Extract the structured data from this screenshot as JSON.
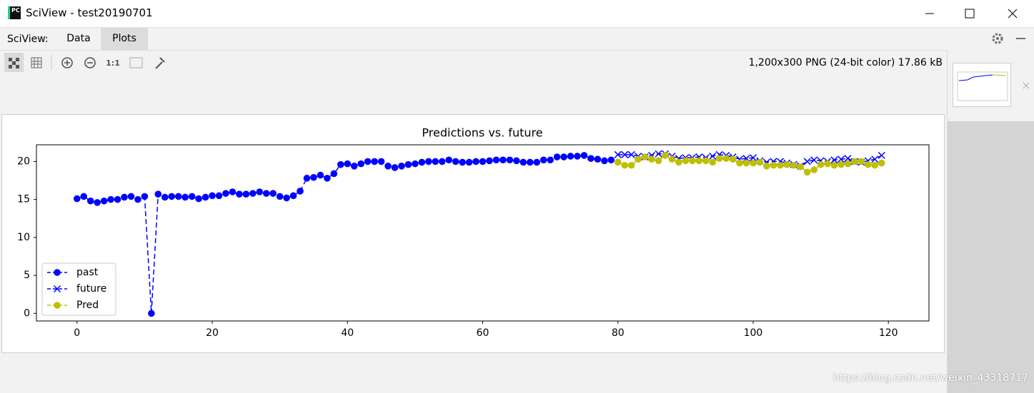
{
  "window": {
    "title": "SciView - test20190701",
    "icon_text": "PC"
  },
  "menu": {
    "label": "SciView:",
    "tabs": [
      "Data",
      "Plots"
    ]
  },
  "toolbar": {
    "zoom_label": "1:1",
    "image_info": "1,200x300 PNG (24-bit color) 17.86 kB"
  },
  "watermark": "https://blog.csdn.net/weixin_43318717",
  "chart_data": {
    "type": "line",
    "title": "Predictions vs. future",
    "xlim": [
      -6,
      126
    ],
    "xticks": [
      0,
      20,
      40,
      60,
      80,
      100,
      120
    ],
    "ylim": [
      -1.0,
      22.2
    ],
    "yticks": [
      0,
      5,
      10,
      15,
      20
    ],
    "grid": false,
    "legend": "lower left",
    "linestyle": "dashed",
    "series": [
      {
        "name": "past",
        "color": "#0000ff",
        "marker": "circle",
        "x": [
          0,
          1,
          2,
          3,
          4,
          5,
          6,
          7,
          8,
          9,
          10,
          11,
          12,
          13,
          14,
          15,
          16,
          17,
          18,
          19,
          20,
          21,
          22,
          23,
          24,
          25,
          26,
          27,
          28,
          29,
          30,
          31,
          32,
          33,
          34,
          35,
          36,
          37,
          38,
          39,
          40,
          41,
          42,
          43,
          44,
          45,
          46,
          47,
          48,
          49,
          50,
          51,
          52,
          53,
          54,
          55,
          56,
          57,
          58,
          59,
          60,
          61,
          62,
          63,
          64,
          65,
          66,
          67,
          68,
          69,
          70,
          71,
          72,
          73,
          74,
          75,
          76,
          77,
          78,
          79
        ],
        "values": [
          15.1,
          15.4,
          14.8,
          14.6,
          14.8,
          15.0,
          15.0,
          15.3,
          15.4,
          15.0,
          15.4,
          0.0,
          15.7,
          15.3,
          15.4,
          15.4,
          15.3,
          15.4,
          15.1,
          15.3,
          15.5,
          15.5,
          15.8,
          16.0,
          15.7,
          15.7,
          15.8,
          16.0,
          15.8,
          15.8,
          15.4,
          15.2,
          15.5,
          16.1,
          17.8,
          17.9,
          18.2,
          17.8,
          18.4,
          19.6,
          19.7,
          19.4,
          19.7,
          20.0,
          20.0,
          20.0,
          19.4,
          19.2,
          19.4,
          19.6,
          19.7,
          19.9,
          20.0,
          20.0,
          20.0,
          20.2,
          20.0,
          19.9,
          19.9,
          20.0,
          20.0,
          20.1,
          20.2,
          20.2,
          20.2,
          20.1,
          19.9,
          19.9,
          19.9,
          20.2,
          20.2,
          20.6,
          20.6,
          20.7,
          20.7,
          20.8,
          20.4,
          20.3,
          20.1,
          20.2
        ]
      },
      {
        "name": "future",
        "color": "#0000ff",
        "marker": "x",
        "x": [
          80,
          81,
          82,
          83,
          84,
          85,
          86,
          87,
          88,
          89,
          90,
          91,
          92,
          93,
          94,
          95,
          96,
          97,
          98,
          99,
          100,
          101,
          102,
          103,
          104,
          105,
          106,
          107,
          108,
          109,
          110,
          111,
          112,
          113,
          114,
          115,
          116,
          117,
          118,
          119
        ],
        "values": [
          20.9,
          20.9,
          20.9,
          20.7,
          20.6,
          20.8,
          21.0,
          21.0,
          20.7,
          20.4,
          20.5,
          20.5,
          20.6,
          20.5,
          20.7,
          20.9,
          20.8,
          20.6,
          20.3,
          20.4,
          20.5,
          20.1,
          19.9,
          20.0,
          20.0,
          19.8,
          19.6,
          19.4,
          20.0,
          20.2,
          20.1,
          20.0,
          20.2,
          20.3,
          20.4,
          20.0,
          19.9,
          20.1,
          20.3,
          20.8
        ]
      },
      {
        "name": "Pred",
        "color": "#bfbf00",
        "marker": "circle",
        "x": [
          80,
          81,
          82,
          83,
          84,
          85,
          86,
          87,
          88,
          89,
          90,
          91,
          92,
          93,
          94,
          95,
          96,
          97,
          98,
          99,
          100,
          101,
          102,
          103,
          104,
          105,
          106,
          107,
          108,
          109,
          110,
          111,
          112,
          113,
          114,
          115,
          116,
          117,
          118,
          119
        ],
        "values": [
          19.9,
          19.5,
          19.5,
          20.3,
          20.6,
          20.3,
          20.1,
          20.8,
          20.3,
          19.9,
          20.1,
          20.1,
          20.1,
          20.1,
          19.9,
          20.4,
          20.4,
          20.3,
          19.8,
          19.8,
          19.8,
          19.9,
          19.4,
          19.5,
          19.5,
          19.6,
          19.5,
          19.3,
          18.6,
          18.9,
          19.6,
          19.7,
          19.5,
          19.6,
          19.7,
          20.0,
          20.0,
          19.6,
          19.5,
          19.8
        ]
      }
    ]
  }
}
